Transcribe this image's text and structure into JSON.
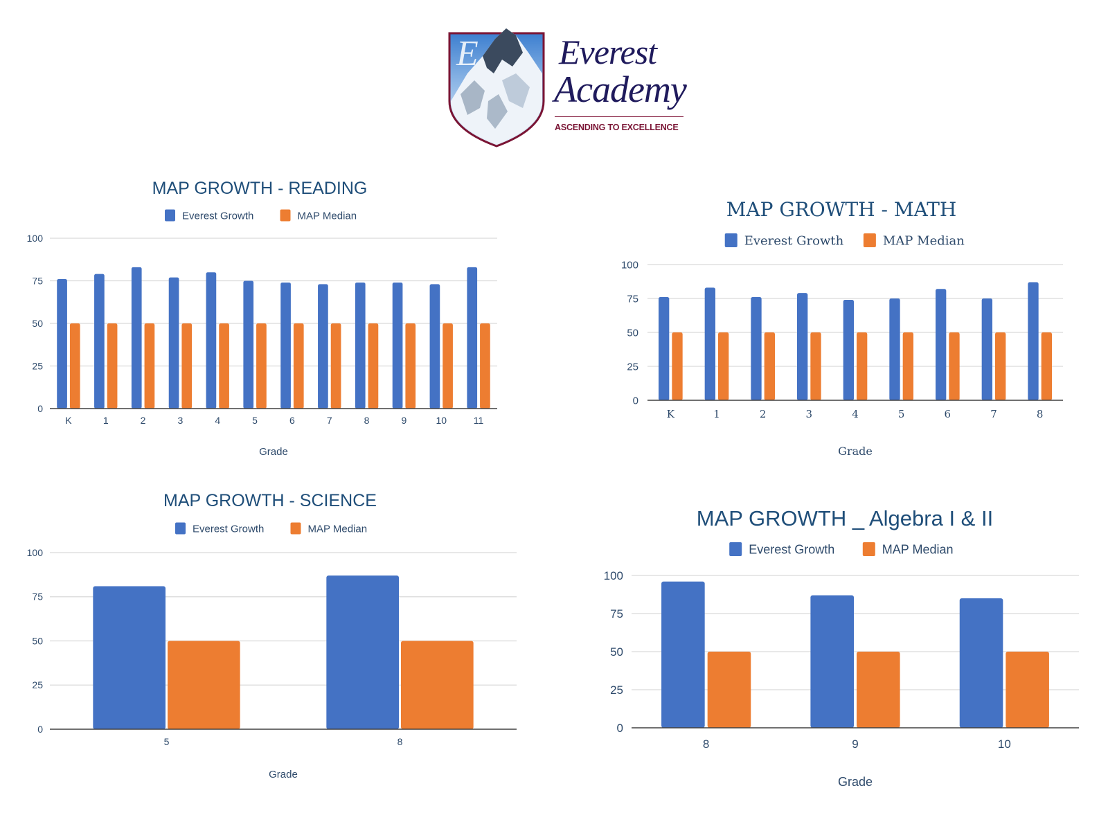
{
  "logo": {
    "name_line1": "Everest",
    "name_line2": "Academy",
    "tagline": "ASCENDING TO EXCELLENCE",
    "shield_letter": "E",
    "colors": {
      "navy": "#1f1a5c",
      "maroon": "#7a1434"
    }
  },
  "colors": {
    "everest_growth": "#4472c4",
    "map_median": "#ed7d31",
    "title": "#1f4e79",
    "gridline": "#d9d9d9",
    "axis": "#404040"
  },
  "chart_data": [
    {
      "id": "reading",
      "type": "bar",
      "title": "MAP GROWTH - READING",
      "xlabel": "Grade",
      "ylabel": "",
      "ylim": [
        0,
        100
      ],
      "yticks": [
        "0",
        "25",
        "50",
        "75",
        "100"
      ],
      "grid": true,
      "legend_position": "top-center",
      "categories": [
        "K",
        "1",
        "2",
        "3",
        "4",
        "5",
        "6",
        "7",
        "8",
        "9",
        "10",
        "11"
      ],
      "series": [
        {
          "name": "Everest Growth",
          "values": [
            76,
            79,
            83,
            77,
            80,
            75,
            74,
            73,
            74,
            74,
            73,
            83
          ]
        },
        {
          "name": "MAP Median",
          "values": [
            50,
            50,
            50,
            50,
            50,
            50,
            50,
            50,
            50,
            50,
            50,
            50
          ]
        }
      ]
    },
    {
      "id": "math",
      "type": "bar",
      "title": "MAP GROWTH - MATH",
      "xlabel": "Grade",
      "ylabel": "",
      "ylim": [
        0,
        100
      ],
      "yticks": [
        "0",
        "25",
        "50",
        "75",
        "100"
      ],
      "grid": true,
      "legend_position": "top-center",
      "categories": [
        "K",
        "1",
        "2",
        "3",
        "4",
        "5",
        "6",
        "7",
        "8"
      ],
      "series": [
        {
          "name": "Everest Growth",
          "values": [
            76,
            83,
            76,
            79,
            74,
            75,
            82,
            75,
            87
          ]
        },
        {
          "name": "MAP Median",
          "values": [
            50,
            50,
            50,
            50,
            50,
            50,
            50,
            50,
            50
          ]
        }
      ]
    },
    {
      "id": "science",
      "type": "bar",
      "title": "MAP GROWTH - SCIENCE",
      "xlabel": "Grade",
      "ylabel": "",
      "ylim": [
        0,
        100
      ],
      "yticks": [
        "0",
        "25",
        "50",
        "75",
        "100"
      ],
      "grid": true,
      "legend_position": "top-center",
      "categories": [
        "5",
        "8"
      ],
      "series": [
        {
          "name": "Everest Growth",
          "values": [
            81,
            87
          ]
        },
        {
          "name": "MAP Median",
          "values": [
            50,
            50
          ]
        }
      ]
    },
    {
      "id": "algebra",
      "type": "bar",
      "title": "MAP GROWTH _ Algebra I & II",
      "xlabel": "Grade",
      "ylabel": "",
      "ylim": [
        0,
        100
      ],
      "yticks": [
        "0",
        "25",
        "50",
        "75",
        "100"
      ],
      "grid": true,
      "legend_position": "top-center",
      "categories": [
        "8",
        "9",
        "10"
      ],
      "series": [
        {
          "name": "Everest Growth",
          "values": [
            96,
            87,
            85
          ]
        },
        {
          "name": "MAP Median",
          "values": [
            50,
            50,
            50
          ]
        }
      ]
    }
  ]
}
